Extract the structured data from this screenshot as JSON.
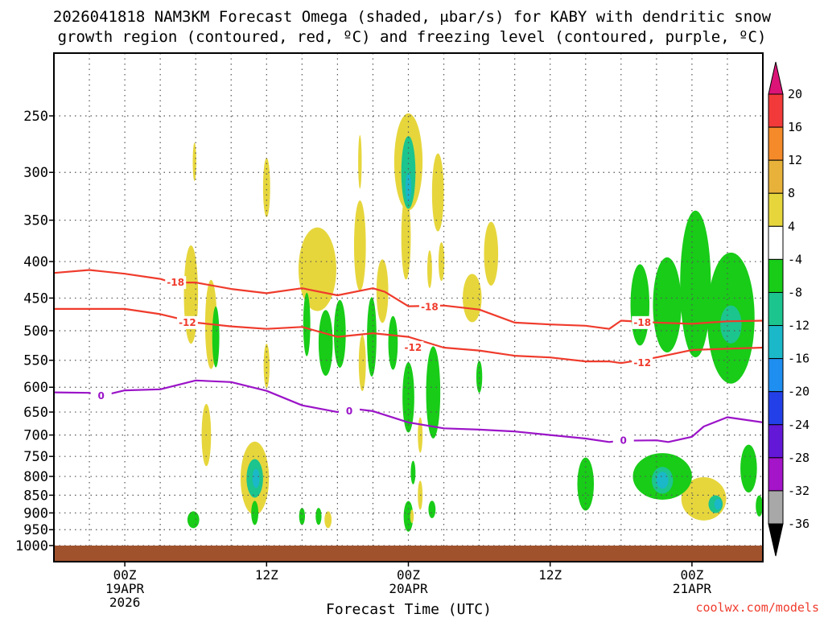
{
  "title_line1": "2026041818 NAM3KM Forecast Omega (shaded, μbar/s) for KABY with dendritic snow",
  "title_line2": "growth region (contoured, red, ºC) and freezing level (contoured, purple, ºC)",
  "xlabel": "Forecast Time (UTC)",
  "credit": "coolwx.com/models",
  "colors": {
    "red": "#ef3b2c",
    "purple": "#9b14c8",
    "ground": "#a0522d",
    "grid": "#555555"
  },
  "chart_data": {
    "type": "heatmap",
    "x_units": "forecast hours from 2026041818",
    "xlim": [
      0,
      60
    ],
    "y_units": "pressure (hPa)",
    "y_scale": "log",
    "ylim": [
      1000,
      200
    ],
    "grid": true,
    "y_ticks": [
      250,
      300,
      350,
      400,
      450,
      500,
      550,
      600,
      650,
      700,
      750,
      800,
      850,
      900,
      950,
      1000
    ],
    "x_ticks": [
      {
        "value": 6,
        "labels": [
          "00Z",
          "19APR",
          "2026"
        ]
      },
      {
        "value": 18,
        "labels": [
          "12Z"
        ]
      },
      {
        "value": 30,
        "labels": [
          "00Z",
          "20APR"
        ]
      },
      {
        "value": 42,
        "labels": [
          "12Z"
        ]
      },
      {
        "value": 54,
        "labels": [
          "00Z",
          "21APR"
        ]
      }
    ],
    "colorbar": {
      "levels": [
        20,
        16,
        12,
        8,
        4,
        -4,
        -8,
        -12,
        -16,
        -20,
        -24,
        -28,
        -32,
        -36
      ],
      "colors": [
        "#f23a3a",
        "#f58a2a",
        "#e8b23a",
        "#e6d63c",
        "#ffffff",
        "#18cc18",
        "#1cc48e",
        "#1ab8c8",
        "#1e8ef0",
        "#2340e8",
        "#6218d6",
        "#a414c8",
        "#a8a8a8"
      ],
      "top_arrow_color": "#dc1478",
      "bottom_arrow_color": "#000000"
    },
    "contours": [
      {
        "label": "-18",
        "color": "#ef3b2c",
        "points": [
          [
            0,
            415
          ],
          [
            3,
            411
          ],
          [
            6,
            416
          ],
          [
            9,
            423
          ],
          [
            10,
            428
          ],
          [
            12,
            428
          ],
          [
            15,
            437
          ],
          [
            18,
            443
          ],
          [
            21,
            436
          ],
          [
            24,
            446
          ],
          [
            27,
            436
          ],
          [
            28,
            441
          ],
          [
            30,
            462
          ],
          [
            33,
            461
          ],
          [
            36,
            467
          ],
          [
            39,
            487
          ],
          [
            42,
            490
          ],
          [
            45,
            492
          ],
          [
            47,
            497
          ],
          [
            48,
            484
          ],
          [
            51,
            487
          ],
          [
            54,
            489
          ],
          [
            57,
            485
          ],
          [
            60,
            484
          ]
        ],
        "label_positions": [
          [
            10.3,
            428
          ],
          [
            31.8,
            463
          ],
          [
            49.8,
            487
          ]
        ]
      },
      {
        "label": "-12",
        "color": "#ef3b2c",
        "points": [
          [
            0,
            466
          ],
          [
            3,
            466
          ],
          [
            6,
            466
          ],
          [
            9,
            474
          ],
          [
            12,
            487
          ],
          [
            15,
            493
          ],
          [
            18,
            497
          ],
          [
            21,
            494
          ],
          [
            24,
            510
          ],
          [
            27,
            504
          ],
          [
            30,
            510
          ],
          [
            33,
            528
          ],
          [
            36,
            533
          ],
          [
            39,
            542
          ],
          [
            42,
            545
          ],
          [
            45,
            552
          ],
          [
            47,
            552
          ],
          [
            48,
            555
          ],
          [
            51,
            545
          ],
          [
            54,
            532
          ],
          [
            57,
            530
          ],
          [
            60,
            528
          ]
        ],
        "label_positions": [
          [
            11.3,
            487
          ],
          [
            30.4,
            528
          ],
          [
            49.8,
            555
          ]
        ]
      },
      {
        "label": "0",
        "color": "#9b14c8",
        "points": [
          [
            0,
            610
          ],
          [
            3,
            611
          ],
          [
            4,
            617
          ],
          [
            6,
            606
          ],
          [
            9,
            604
          ],
          [
            12,
            587
          ],
          [
            15,
            590
          ],
          [
            18,
            607
          ],
          [
            21,
            636
          ],
          [
            24,
            650
          ],
          [
            25,
            642
          ],
          [
            27,
            648
          ],
          [
            30,
            672
          ],
          [
            33,
            685
          ],
          [
            36,
            688
          ],
          [
            39,
            692
          ],
          [
            42,
            700
          ],
          [
            45,
            708
          ],
          [
            47,
            716
          ],
          [
            48,
            713
          ],
          [
            51,
            712
          ],
          [
            52,
            716
          ],
          [
            54,
            704
          ],
          [
            55,
            681
          ],
          [
            57,
            661
          ],
          [
            60,
            672
          ]
        ],
        "label_positions": [
          [
            4,
            617
          ],
          [
            25,
            648
          ],
          [
            48.2,
            713
          ]
        ]
      }
    ],
    "shaded_regions": [
      {
        "value": 6,
        "x": 11.9,
        "p": 290,
        "rx": 0.15,
        "rp": 18
      },
      {
        "value": 6,
        "x": 11.6,
        "p": 445,
        "rx": 0.6,
        "rp": 70
      },
      {
        "value": 6,
        "x": 13.3,
        "p": 490,
        "rx": 0.5,
        "rp": 70
      },
      {
        "value": 6,
        "x": 18.0,
        "p": 315,
        "rx": 0.3,
        "rp": 30
      },
      {
        "value": 6,
        "x": 18.0,
        "p": 560,
        "rx": 0.25,
        "rp": 40
      },
      {
        "value": 6,
        "x": 22.3,
        "p": 410,
        "rx": 1.6,
        "rp": 55
      },
      {
        "value": 6,
        "x": 24.0,
        "p": 520,
        "rx": 0.15,
        "rp": 20
      },
      {
        "value": 6,
        "x": 25.9,
        "p": 290,
        "rx": 0.15,
        "rp": 25
      },
      {
        "value": 6,
        "x": 25.9,
        "p": 380,
        "rx": 0.5,
        "rp": 55
      },
      {
        "value": 6,
        "x": 26.1,
        "p": 555,
        "rx": 0.3,
        "rp": 50
      },
      {
        "value": 6,
        "x": 27.8,
        "p": 440,
        "rx": 0.5,
        "rp": 45
      },
      {
        "value": 6,
        "x": 29.8,
        "p": 370,
        "rx": 0.4,
        "rp": 50
      },
      {
        "value": 6,
        "x": 30.0,
        "p": 290,
        "rx": 1.2,
        "rp": 45
      },
      {
        "value": 6,
        "x": 31.8,
        "p": 410,
        "rx": 0.2,
        "rp": 25
      },
      {
        "value": 6,
        "x": 32.5,
        "p": 320,
        "rx": 0.5,
        "rp": 40
      },
      {
        "value": 6,
        "x": 32.8,
        "p": 400,
        "rx": 0.25,
        "rp": 25
      },
      {
        "value": 6,
        "x": 35.4,
        "p": 450,
        "rx": 0.8,
        "rp": 35
      },
      {
        "value": 6,
        "x": 37.0,
        "p": 390,
        "rx": 0.6,
        "rp": 40
      },
      {
        "value": 6,
        "x": 12.9,
        "p": 700,
        "rx": 0.4,
        "rp": 70
      },
      {
        "value": 6,
        "x": 17.0,
        "p": 805,
        "rx": 1.2,
        "rp": 95
      },
      {
        "value": 6,
        "x": 23.2,
        "p": 920,
        "rx": 0.3,
        "rp": 25
      },
      {
        "value": 6,
        "x": 31.0,
        "p": 850,
        "rx": 0.2,
        "rp": 40
      },
      {
        "value": 6,
        "x": 55.0,
        "p": 860,
        "rx": 1.9,
        "rp": 60
      },
      {
        "value": -6,
        "x": 13.7,
        "p": 510,
        "rx": 0.3,
        "rp": 50
      },
      {
        "value": -6,
        "x": 21.4,
        "p": 490,
        "rx": 0.3,
        "rp": 50
      },
      {
        "value": -6,
        "x": 24.2,
        "p": 505,
        "rx": 0.5,
        "rp": 55
      },
      {
        "value": -6,
        "x": 26.9,
        "p": 510,
        "rx": 0.4,
        "rp": 65
      },
      {
        "value": -6,
        "x": 28.7,
        "p": 520,
        "rx": 0.4,
        "rp": 45
      },
      {
        "value": -6,
        "x": 23.0,
        "p": 520,
        "rx": 0.6,
        "rp": 55
      },
      {
        "value": -6,
        "x": 30.0,
        "p": 620,
        "rx": 0.5,
        "rp": 70
      },
      {
        "value": -6,
        "x": 32.1,
        "p": 610,
        "rx": 0.6,
        "rp": 90
      },
      {
        "value": -6,
        "x": 36.0,
        "p": 580,
        "rx": 0.25,
        "rp": 30
      },
      {
        "value": -6,
        "x": 49.6,
        "p": 460,
        "rx": 0.8,
        "rp": 60
      },
      {
        "value": -6,
        "x": 51.9,
        "p": 460,
        "rx": 1.2,
        "rp": 70
      },
      {
        "value": -6,
        "x": 54.3,
        "p": 430,
        "rx": 1.3,
        "rp": 100
      },
      {
        "value": -6,
        "x": 57.3,
        "p": 480,
        "rx": 2.0,
        "rp": 100
      },
      {
        "value": -6,
        "x": 45.0,
        "p": 820,
        "rx": 0.7,
        "rp": 70
      },
      {
        "value": -6,
        "x": 51.5,
        "p": 800,
        "rx": 2.5,
        "rp": 60
      },
      {
        "value": -6,
        "x": 58.8,
        "p": 780,
        "rx": 0.7,
        "rp": 60
      },
      {
        "value": -6,
        "x": 59.7,
        "p": 880,
        "rx": 0.3,
        "rp": 30
      },
      {
        "value": -6,
        "x": 11.8,
        "p": 920,
        "rx": 0.5,
        "rp": 25
      },
      {
        "value": -6,
        "x": 17.0,
        "p": 900,
        "rx": 0.3,
        "rp": 35
      },
      {
        "value": -6,
        "x": 21.0,
        "p": 910,
        "rx": 0.25,
        "rp": 25
      },
      {
        "value": -6,
        "x": 22.4,
        "p": 910,
        "rx": 0.25,
        "rp": 25
      },
      {
        "value": -6,
        "x": 30.0,
        "p": 910,
        "rx": 0.4,
        "rp": 45
      },
      {
        "value": -6,
        "x": 30.4,
        "p": 790,
        "rx": 0.2,
        "rp": 30
      },
      {
        "value": -6,
        "x": 32.0,
        "p": 890,
        "rx": 0.3,
        "rp": 25
      },
      {
        "value": 6,
        "x": 30.3,
        "p": 910,
        "rx": 0.15,
        "rp": 20
      },
      {
        "value": 6,
        "x": 31.0,
        "p": 700,
        "rx": 0.2,
        "rp": 40
      },
      {
        "value": -10,
        "x": 17.0,
        "p": 805,
        "rx": 0.7,
        "rp": 50
      },
      {
        "value": -10,
        "x": 30.0,
        "p": 300,
        "rx": 0.6,
        "rp": 35
      },
      {
        "value": -10,
        "x": 56.0,
        "p": 875,
        "rx": 0.6,
        "rp": 25
      },
      {
        "value": -14,
        "x": 17.1,
        "p": 805,
        "rx": 0.3,
        "rp": 25
      },
      {
        "value": -14,
        "x": 30.0,
        "p": 315,
        "rx": 0.25,
        "rp": 15
      },
      {
        "value": -14,
        "x": 56.2,
        "p": 875,
        "rx": 0.3,
        "rp": 15
      },
      {
        "value": -6,
        "x": 50.8,
        "p": 800,
        "rx": 1.5,
        "rp": 45
      },
      {
        "value": -10,
        "x": 51.5,
        "p": 810,
        "rx": 0.9,
        "rp": 35
      },
      {
        "value": -10,
        "x": 57.3,
        "p": 490,
        "rx": 0.9,
        "rp": 30
      },
      {
        "value": -14,
        "x": 51.5,
        "p": 810,
        "rx": 0.5,
        "rp": 22
      }
    ],
    "ground_level_hpa": 1020
  }
}
